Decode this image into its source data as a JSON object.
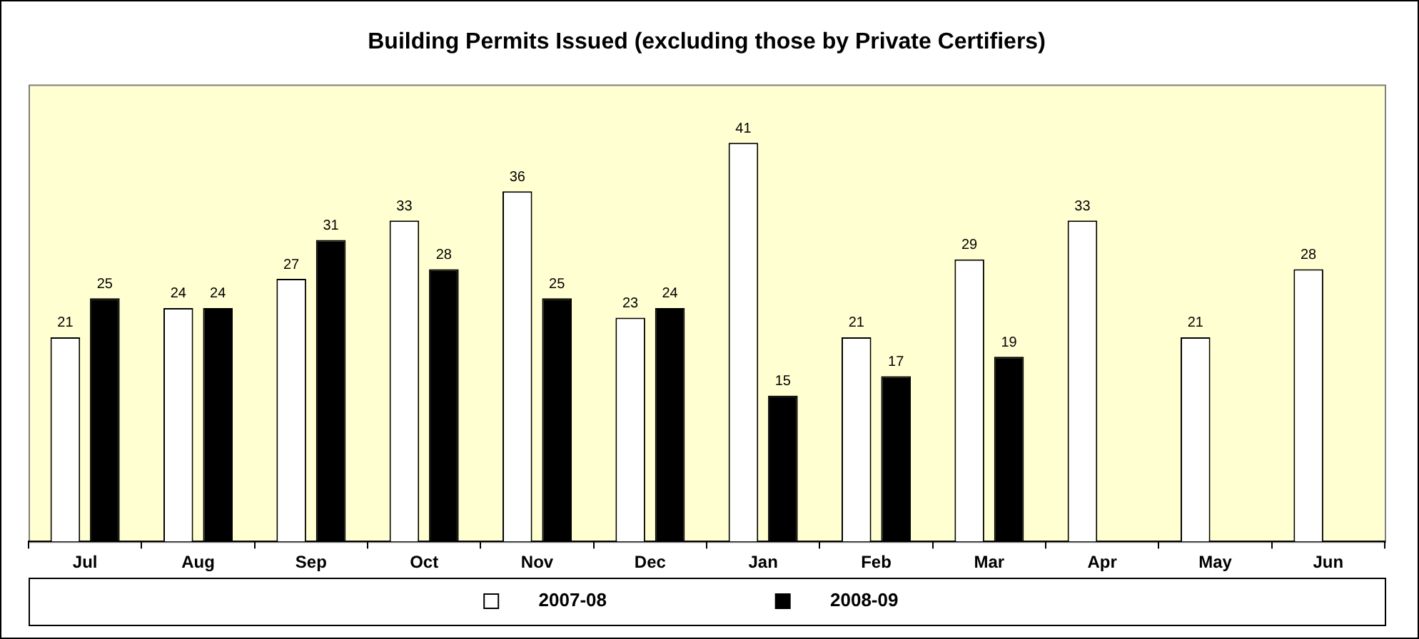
{
  "chart_data": {
    "type": "bar",
    "title": "Building Permits Issued (excluding those by Private Certifiers)",
    "categories": [
      "Jul",
      "Aug",
      "Sep",
      "Oct",
      "Nov",
      "Dec",
      "Jan",
      "Feb",
      "Mar",
      "Apr",
      "May",
      "Jun"
    ],
    "series": [
      {
        "name": "2007-08",
        "color": "#ffffff",
        "values": [
          21,
          24,
          27,
          33,
          36,
          23,
          41,
          21,
          29,
          33,
          21,
          28
        ]
      },
      {
        "name": "2008-09",
        "color": "#000000",
        "values": [
          25,
          24,
          31,
          28,
          25,
          24,
          15,
          17,
          19,
          null,
          null,
          null
        ]
      }
    ],
    "ylim": [
      0,
      47
    ],
    "tick_labels": "x",
    "data_labels": true,
    "grid": false,
    "legend": "bottom"
  }
}
